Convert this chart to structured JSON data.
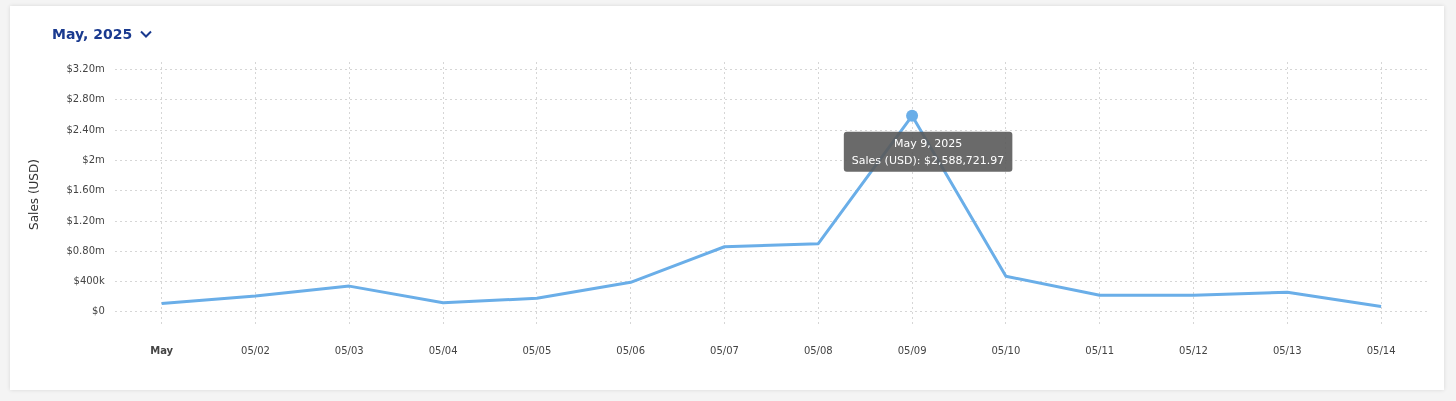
{
  "chart_data": {
    "type": "line",
    "title": "May, 2025",
    "ylabel": "Sales (USD)",
    "categories": [
      "May",
      "05/02",
      "05/03",
      "05/04",
      "05/05",
      "05/06",
      "05/07",
      "05/08",
      "05/09",
      "05/10",
      "05/11",
      "05/12",
      "05/13",
      "05/14"
    ],
    "series": [
      {
        "color": "#6aaee8",
        "values": [
          110000,
          210000,
          340000,
          120000,
          180000,
          390000,
          860000,
          900000,
          2588721.97,
          470000,
          220000,
          220000,
          260000,
          70000
        ]
      }
    ],
    "ylim": [
      -200000,
      3300000
    ],
    "yticks": [
      {
        "value": 0,
        "label": "$0"
      },
      {
        "value": 400000,
        "label": "$400k"
      },
      {
        "value": 800000,
        "label": "$0.80m"
      },
      {
        "value": 1200000,
        "label": "$1.20m"
      },
      {
        "value": 1600000,
        "label": "$1.60m"
      },
      {
        "value": 2000000,
        "label": "$2m"
      },
      {
        "value": 2400000,
        "label": "$2.40m"
      },
      {
        "value": 2800000,
        "label": "$2.80m"
      },
      {
        "value": 3200000,
        "label": "$3.20m"
      }
    ],
    "grid": true,
    "marker": "none",
    "line_style": "solid",
    "annotations": [
      {
        "text": "May 9, 2025",
        "x": "05/09",
        "y": 2588721.97
      },
      "Sales (USD): $2,588,721.97"
    ]
  }
}
